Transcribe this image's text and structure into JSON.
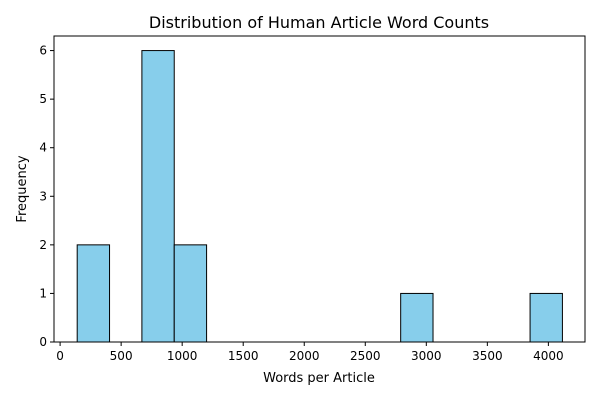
{
  "chart_data": {
    "type": "bar",
    "title": "Distribution of Human Article Word Counts",
    "xlabel": "Words per Article",
    "ylabel": "Frequency",
    "xlim": [
      -50,
      4300
    ],
    "ylim": [
      0,
      6.3
    ],
    "x_ticks": [
      0,
      500,
      1000,
      1500,
      2000,
      2500,
      3000,
      3500,
      4000
    ],
    "y_ticks": [
      0,
      1,
      2,
      3,
      4,
      5,
      6
    ],
    "bar_color": "#87ceeb",
    "edge_color": "#000000",
    "bins": [
      {
        "start": 140,
        "end": 405,
        "count": 2
      },
      {
        "start": 670,
        "end": 935,
        "count": 6
      },
      {
        "start": 935,
        "end": 1200,
        "count": 2
      },
      {
        "start": 2790,
        "end": 3055,
        "count": 1
      },
      {
        "start": 3850,
        "end": 4115,
        "count": 1
      }
    ],
    "grid": false,
    "legend": "none"
  }
}
